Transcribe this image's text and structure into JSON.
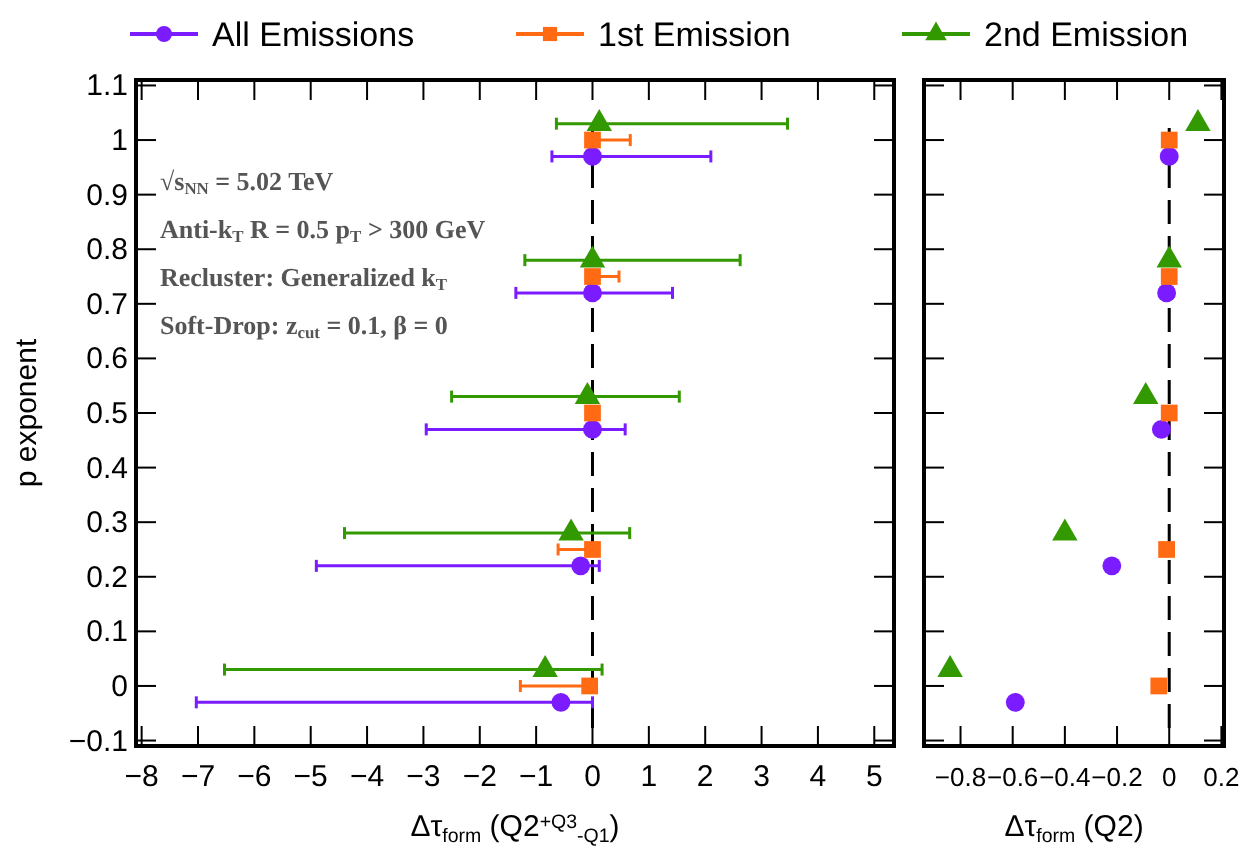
{
  "chart_data": [
    {
      "type": "scatter",
      "xlabel": "Δτ$_{form}$ (Q2$^{+Q3}$$_{-Q1}$)",
      "ylabel": "p exponent",
      "xlim": [
        -8.1,
        5.35
      ],
      "ylim": [
        -0.11,
        1.11
      ],
      "xticks": [
        -8,
        -7,
        -6,
        -5,
        -4,
        -3,
        -2,
        -1,
        0,
        1,
        2,
        3,
        4,
        5
      ],
      "yticks": [
        -0.1,
        0,
        0.1,
        0.2,
        0.3,
        0.4,
        0.5,
        0.6,
        0.7,
        0.8,
        0.9,
        1,
        1.1
      ],
      "legend": "top",
      "grid": false,
      "annotations": [
        "√s$_{NN}$ = 5.02 TeV",
        "Anti-k$_{T}$ R = 0.5 p$_{T}$ > 300 GeV",
        "Recluster: Generalized k$_{T}$",
        "Soft-Drop: z$_{cut}$ = 0.1,  β = 0"
      ],
      "ref_lines": [
        {
          "axis": "x",
          "value": 0,
          "color": "#000000",
          "line_style": "dashed"
        }
      ],
      "series": [
        {
          "name": "All Emissions",
          "color": "#7a1cff",
          "marker": "circle",
          "x": [
            0,
            0,
            0,
            -0.21,
            -0.56
          ],
          "values": [
            0.97,
            0.72,
            0.47,
            0.22,
            -0.03
          ],
          "xerrors": [
            [
              -0.72,
              2.1
            ],
            [
              -1.36,
              1.42
            ],
            [
              -2.95,
              0.58
            ],
            [
              -4.9,
              0.12
            ],
            [
              -7.03,
              0
            ]
          ]
        },
        {
          "name": "1st Emission",
          "color": "#ff6a13",
          "marker": "square",
          "x": [
            0,
            0,
            0,
            0,
            -0.05
          ],
          "values": [
            1,
            0.75,
            0.5,
            0.25,
            0
          ],
          "xerrors": [
            [
              0,
              0.67
            ],
            [
              0,
              0.47
            ],
            [
              -0.1,
              0.1
            ],
            [
              -0.61,
              0
            ],
            [
              -1.28,
              0
            ]
          ]
        },
        {
          "name": "2nd Emission",
          "color": "#339900",
          "marker": "triangle",
          "x": [
            0.12,
            0,
            -0.09,
            -0.38,
            -0.84
          ],
          "values": [
            1.03,
            0.78,
            0.53,
            0.28,
            0.03
          ],
          "xerrors": [
            [
              -0.64,
              3.46
            ],
            [
              -1.2,
              2.62
            ],
            [
              -2.5,
              1.54
            ],
            [
              -4.4,
              0.66
            ],
            [
              -6.53,
              0.17
            ]
          ]
        }
      ]
    },
    {
      "type": "scatter",
      "xlabel": "Δτ$_{form}$ (Q2)",
      "xlim": [
        -0.94,
        0.21
      ],
      "ylim": [
        -0.11,
        1.11
      ],
      "xticks": [
        -0.8,
        -0.6,
        -0.4,
        -0.2,
        0,
        0.2
      ],
      "yticks": [
        -0.1,
        0,
        0.1,
        0.2,
        0.3,
        0.4,
        0.5,
        0.6,
        0.7,
        0.8,
        0.9,
        1,
        1.1
      ],
      "tick_labels": "x",
      "grid": false,
      "ref_lines": [
        {
          "axis": "x",
          "value": 0,
          "color": "#000000",
          "line_style": "dashed"
        }
      ],
      "series": [
        {
          "color": "#7a1cff",
          "marker": "circle",
          "x": [
            0,
            -0.01,
            -0.03,
            -0.22,
            -0.59
          ],
          "values": [
            0.97,
            0.72,
            0.47,
            0.22,
            -0.03
          ]
        },
        {
          "color": "#ff6a13",
          "marker": "square",
          "x": [
            0,
            0,
            0,
            -0.01,
            -0.04
          ],
          "values": [
            1,
            0.75,
            0.5,
            0.25,
            0
          ]
        },
        {
          "color": "#339900",
          "marker": "triangle",
          "x": [
            0.11,
            0,
            -0.09,
            -0.4,
            -0.84
          ],
          "values": [
            1.03,
            0.78,
            0.53,
            0.28,
            0.03
          ]
        }
      ]
    }
  ]
}
